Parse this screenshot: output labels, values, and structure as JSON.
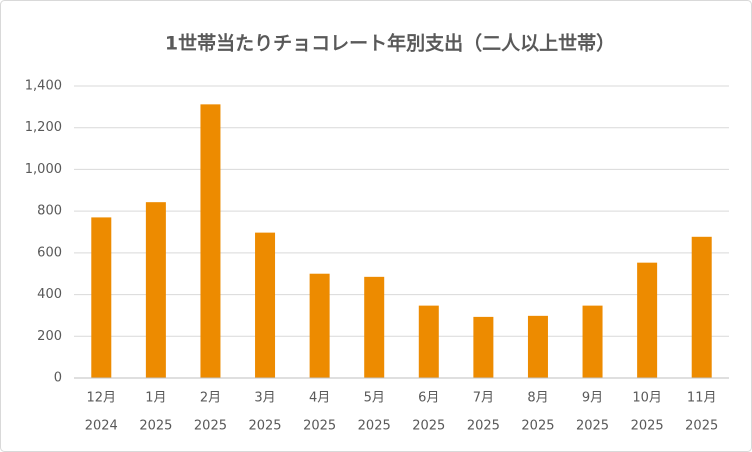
{
  "chart_data": {
    "type": "bar",
    "title": "1世帯当たりチョコレート年別支出（二人以上世帯）",
    "categories": [
      [
        "12月",
        "2024"
      ],
      [
        "1月",
        "2025"
      ],
      [
        "2月",
        "2025"
      ],
      [
        "3月",
        "2025"
      ],
      [
        "4月",
        "2025"
      ],
      [
        "5月",
        "2025"
      ],
      [
        "6月",
        "2025"
      ],
      [
        "7月",
        "2025"
      ],
      [
        "8月",
        "2025"
      ],
      [
        "9月",
        "2025"
      ],
      [
        "10月",
        "2025"
      ],
      [
        "11月",
        "2025"
      ]
    ],
    "values": [
      770,
      843,
      1312,
      697,
      500,
      485,
      347,
      293,
      298,
      347,
      553,
      677
    ],
    "color": "#ed8b00",
    "ylim": [
      0,
      1400
    ],
    "yticks": [
      0,
      200,
      400,
      600,
      800,
      {
        "value": 1000,
        "label": "1,000"
      },
      {
        "value": 1200,
        "label": "1,200"
      },
      {
        "value": 1400,
        "label": "1,400"
      }
    ],
    "grid": true
  }
}
